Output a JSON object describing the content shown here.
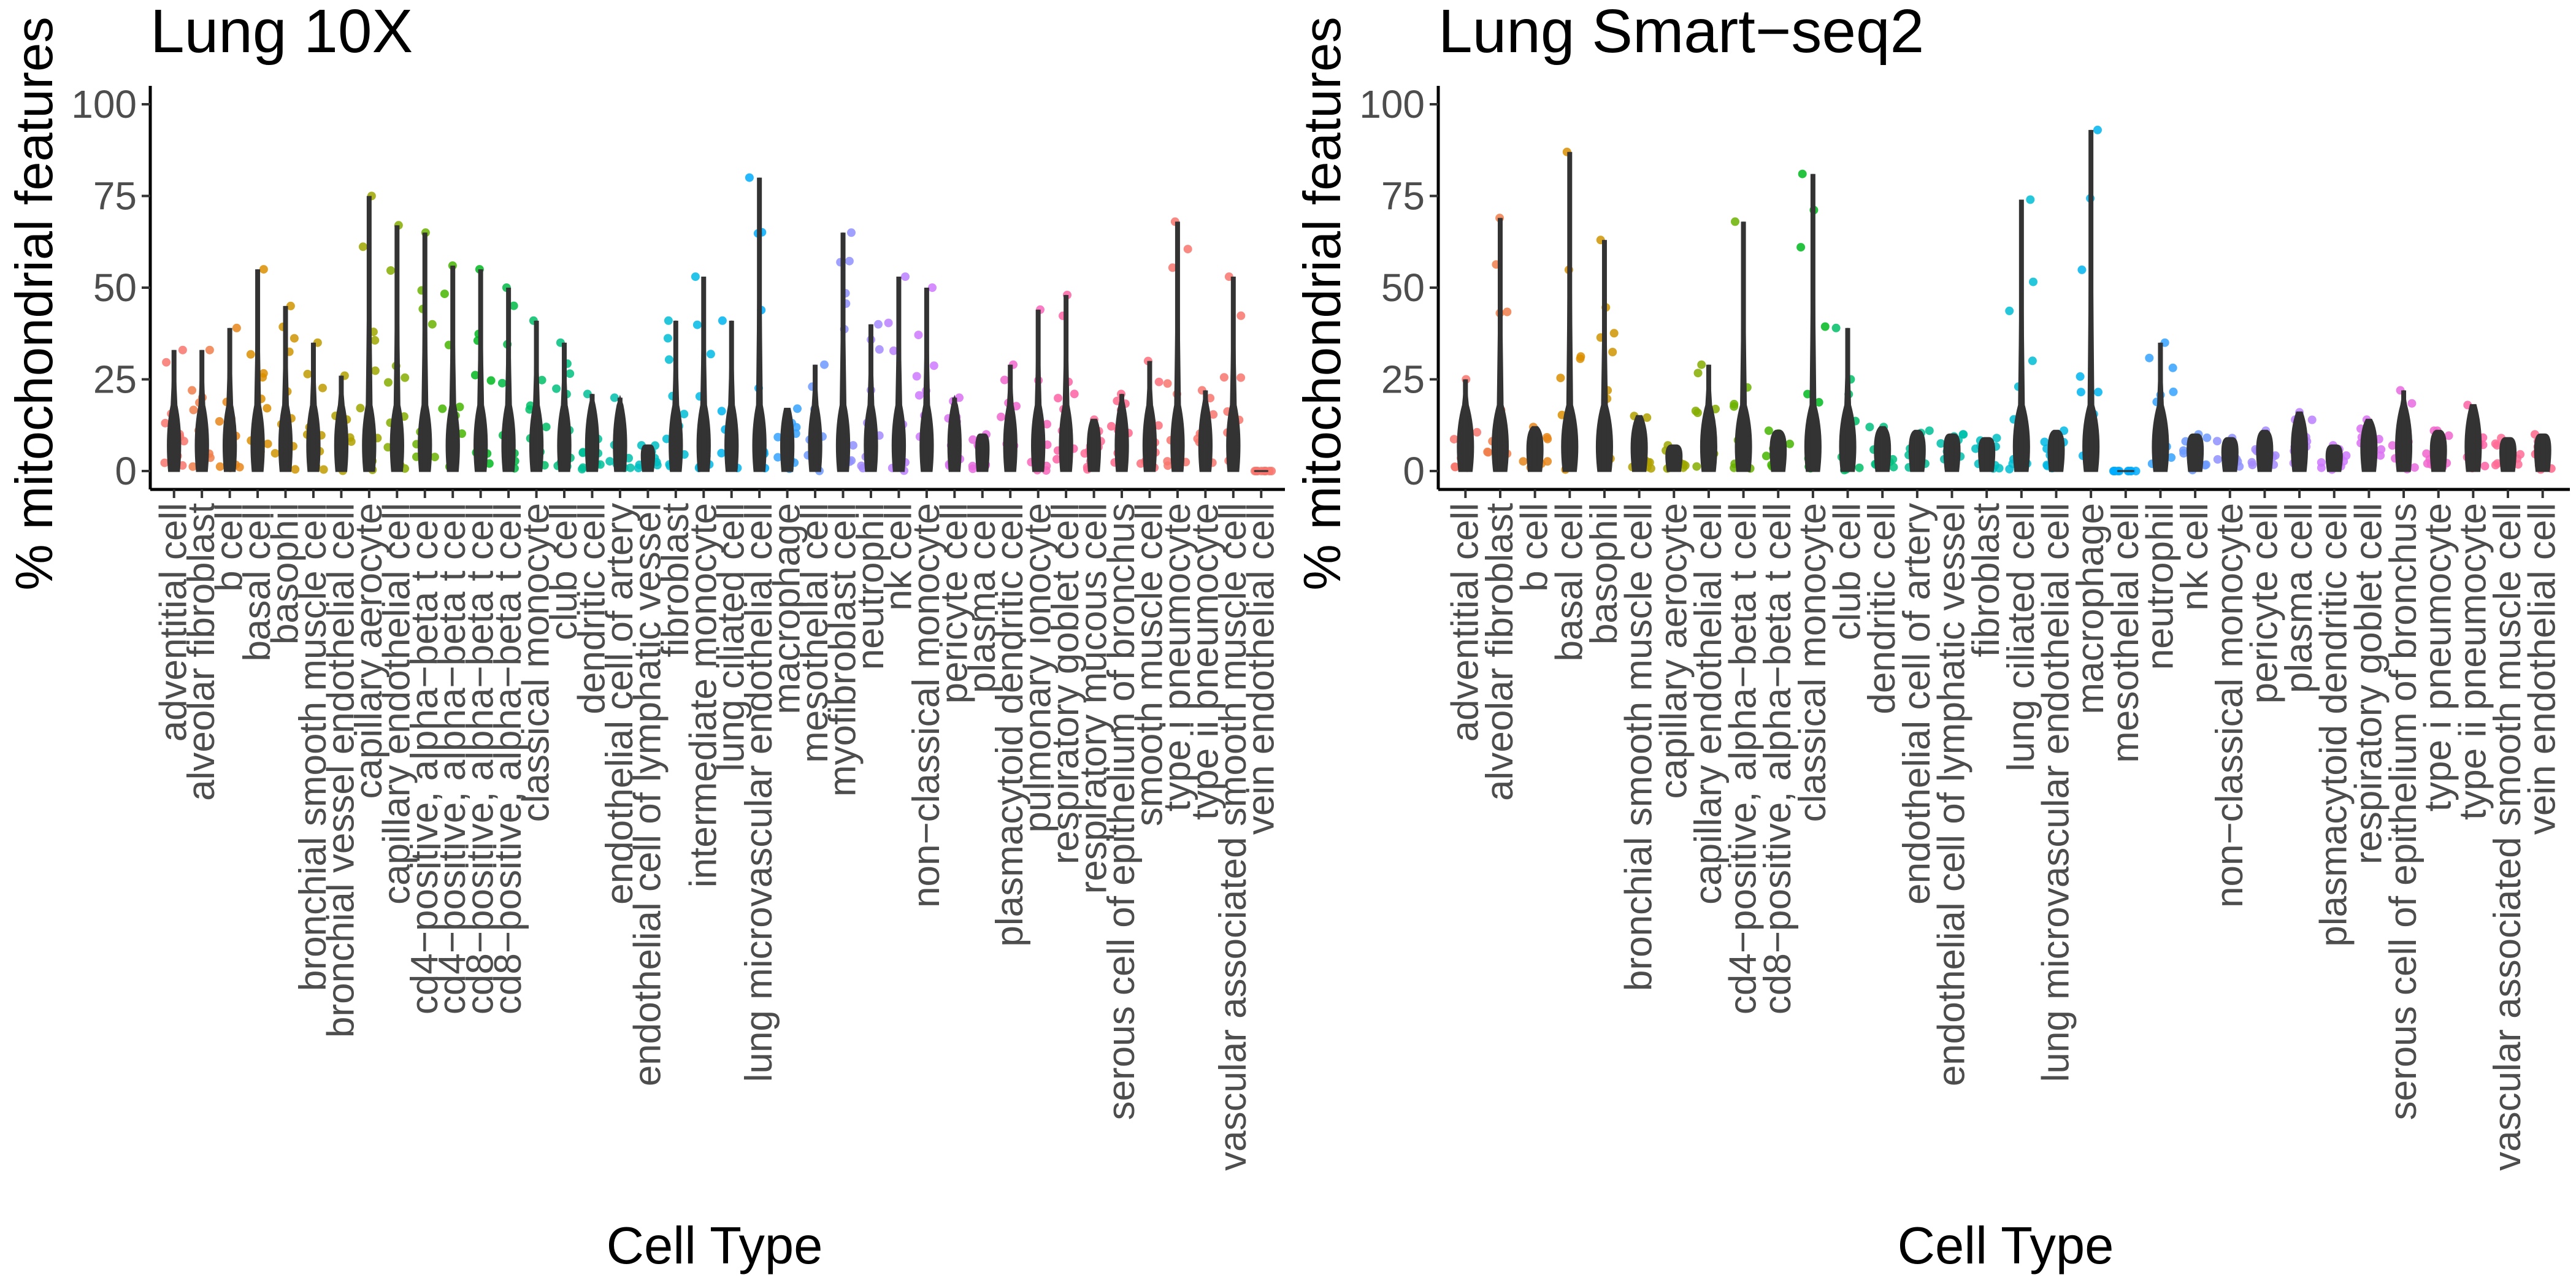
{
  "chart_data": [
    {
      "type": "violin",
      "title": "Lung 10X",
      "xlabel": "Cell Type",
      "ylabel": "% mitochondrial features",
      "ylim": [
        0,
        100
      ],
      "yticks": [
        0,
        25,
        50,
        75,
        100
      ],
      "grid": false,
      "legend": "none",
      "categories": [
        "adventitial cell",
        "alveolar fibroblast",
        "b cell",
        "basal cell",
        "basophil",
        "bronchial smooth muscle cell",
        "bronchial vessel endothelial cell",
        "capillary aerocyte",
        "capillary endothelial cell",
        "cd4−positive, alpha−beta t cell",
        "cd4−positive, alpha−beta t cell",
        "cd8−positive, alpha−beta t cell",
        "cd8−positive, alpha−beta t cell",
        "classical monocyte",
        "club cell",
        "dendritic cell",
        "endothelial cell of artery",
        "endothelial cell of lymphatic vessel",
        "fibroblast",
        "intermediate monocyte",
        "lung ciliated cell",
        "lung microvascular endothelial cell",
        "macrophage",
        "mesothelial cell",
        "myofibroblast cell",
        "neutrophil",
        "nk cell",
        "non−classical monocyte",
        "pericyte cell",
        "plasma cell",
        "plasmacytoid dendritic cell",
        "pulmonary ionocyte",
        "respiratory goblet cell",
        "respiratory mucous cell",
        "serous cell of epithelium of bronchus",
        "smooth muscle cell",
        "type i pneumocyte",
        "type ii pneumocyte",
        "vascular associated smooth muscle cell",
        "vein endothelial cell"
      ],
      "colors": [
        "#F8766D",
        "#F07E4B",
        "#E7861B",
        "#DB8E00",
        "#CF9400",
        "#C09B00",
        "#B0A100",
        "#9DA700",
        "#85AD00",
        "#6BB100",
        "#45B500",
        "#00B81F",
        "#00BB46",
        "#00BE67",
        "#00BF7F",
        "#00C096",
        "#00C0AC",
        "#00BFC2",
        "#00BDD4",
        "#00BAE5",
        "#00B4F0",
        "#00ABFD",
        "#35A2FF",
        "#6C9AFF",
        "#8F91FF",
        "#A58AFF",
        "#BA80FF",
        "#CC78FF",
        "#DA71F2",
        "#E76BE1",
        "#F166CE",
        "#F865BA",
        "#FC62A5",
        "#FF6B96",
        "#FF6589",
        "#FD6F7A",
        "#F8766D",
        "#F8766D",
        "#F8766D",
        "#F8766D"
      ],
      "series": [
        {
          "values": [
            33,
            33,
            39,
            55,
            45,
            35,
            26,
            75,
            67,
            65,
            56,
            55,
            50,
            41,
            35,
            21,
            20,
            7,
            41,
            53,
            41,
            80,
            17,
            29,
            65,
            40,
            53,
            50,
            20,
            10,
            29,
            44,
            48,
            14,
            21,
            30,
            68,
            22,
            53,
            0
          ]
        }
      ]
    },
    {
      "type": "violin",
      "title": "Lung Smart−seq2",
      "xlabel": "Cell Type",
      "ylabel": "% mitochondrial features",
      "ylim": [
        0,
        100
      ],
      "yticks": [
        0,
        25,
        50,
        75,
        100
      ],
      "grid": false,
      "legend": "none",
      "categories": [
        "adventitial cell",
        "alveolar fibroblast",
        "b cell",
        "basal cell",
        "basophil",
        "bronchial smooth muscle cell",
        "capillary aerocyte",
        "capillary endothelial cell",
        "cd4−positive, alpha−beta t cell",
        "cd8−positive, alpha−beta t cell",
        "classical monocyte",
        "club cell",
        "dendritic cell",
        "endothelial cell of artery",
        "endothelial cell of lymphatic vessel",
        "fibroblast",
        "lung ciliated cell",
        "lung microvascular endothelial cell",
        "macrophage",
        "mesothelial cell",
        "neutrophil",
        "nk cell",
        "non−classical monocyte",
        "pericyte cell",
        "plasma cell",
        "plasmacytoid dendritic cell",
        "respiratory goblet cell",
        "serous cell of epithelium of bronchus",
        "type i pneumocyte",
        "type ii pneumocyte",
        "vascular associated smooth muscle cell",
        "vein endothelial cell"
      ],
      "colors": [
        "#F8766D",
        "#F07E4B",
        "#E7861B",
        "#DB8E00",
        "#CF9400",
        "#B0A100",
        "#9DA700",
        "#85AD00",
        "#6BB100",
        "#45B500",
        "#00B81F",
        "#00BE67",
        "#00BF7F",
        "#00C096",
        "#00C0AC",
        "#00BFC2",
        "#00BDD4",
        "#00BAE5",
        "#00B4F0",
        "#00ABFD",
        "#35A2FF",
        "#6C9AFF",
        "#8F91FF",
        "#A58AFF",
        "#BA80FF",
        "#CC78FF",
        "#DA71F2",
        "#E76BE1",
        "#F166CE",
        "#FC62A5",
        "#FF6B96",
        "#FF6589"
      ],
      "series": [
        {
          "values": [
            25,
            69,
            12,
            87,
            63,
            15,
            7,
            29,
            68,
            11,
            81,
            39,
            12,
            11,
            10,
            9,
            74,
            11,
            93,
            0,
            35,
            10,
            9,
            11,
            16,
            7,
            14,
            22,
            11,
            18,
            9,
            10
          ]
        }
      ]
    }
  ]
}
